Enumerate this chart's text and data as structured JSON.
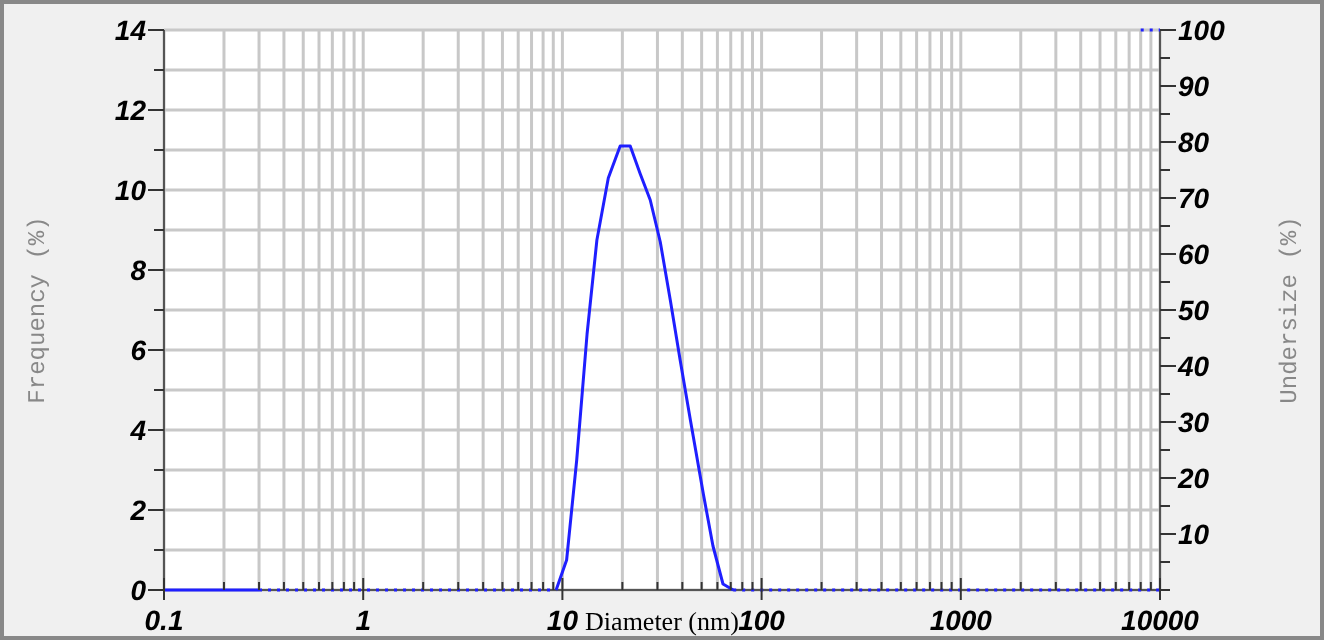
{
  "chart_data": {
    "type": "line",
    "xlabel": "Diameter (nm)",
    "ylabel": "Frequency (%)",
    "y2label": "Undersize (%)",
    "log": "x",
    "grid": true,
    "marker": "none",
    "xlim": [
      0.1,
      10000
    ],
    "xticks": [
      0.1,
      {
        "value": 0.2,
        "label": null
      },
      {
        "value": 0.3,
        "label": null
      },
      {
        "value": 0.4,
        "label": null
      },
      {
        "value": 0.5,
        "label": null
      },
      {
        "value": 0.6,
        "label": null
      },
      {
        "value": 0.7,
        "label": null
      },
      {
        "value": 0.8,
        "label": null
      },
      {
        "value": 0.9,
        "label": null
      },
      1,
      {
        "value": 2,
        "label": null
      },
      {
        "value": 3,
        "label": null
      },
      {
        "value": 4,
        "label": null
      },
      {
        "value": 5,
        "label": null
      },
      {
        "value": 6,
        "label": null
      },
      {
        "value": 7,
        "label": null
      },
      {
        "value": 8,
        "label": null
      },
      {
        "value": 9,
        "label": null
      },
      10,
      {
        "value": 20,
        "label": null
      },
      {
        "value": 30,
        "label": null
      },
      {
        "value": 40,
        "label": null
      },
      {
        "value": 50,
        "label": null
      },
      {
        "value": 60,
        "label": null
      },
      {
        "value": 70,
        "label": null
      },
      {
        "value": 80,
        "label": null
      },
      {
        "value": 90,
        "label": null
      },
      100,
      {
        "value": 200,
        "label": null
      },
      {
        "value": 300,
        "label": null
      },
      {
        "value": 400,
        "label": null
      },
      {
        "value": 500,
        "label": null
      },
      {
        "value": 600,
        "label": null
      },
      {
        "value": 700,
        "label": null
      },
      {
        "value": 800,
        "label": null
      },
      {
        "value": 900,
        "label": null
      },
      1000,
      {
        "value": 2000,
        "label": null
      },
      {
        "value": 3000,
        "label": null
      },
      {
        "value": 4000,
        "label": null
      },
      {
        "value": 5000,
        "label": null
      },
      {
        "value": 6000,
        "label": null
      },
      {
        "value": 7000,
        "label": null
      },
      {
        "value": 8000,
        "label": null
      },
      {
        "value": 9000,
        "label": null
      },
      10000
    ],
    "ylim": [
      0,
      14
    ],
    "yticks": [
      0,
      {
        "value": 1,
        "label": null
      },
      2,
      {
        "value": 3,
        "label": null
      },
      4,
      {
        "value": 5,
        "label": null
      },
      6,
      {
        "value": 7,
        "label": null
      },
      8,
      {
        "value": 9,
        "label": null
      },
      10,
      {
        "value": 11,
        "label": null
      },
      12,
      {
        "value": 13,
        "label": null
      },
      14
    ],
    "y2lim": [
      0,
      100
    ],
    "y2ticks": [
      {
        "value": 0,
        "label": null
      },
      {
        "value": 5,
        "label": null
      },
      10,
      {
        "value": 15,
        "label": null
      },
      20,
      {
        "value": 25,
        "label": null
      },
      30,
      {
        "value": 35,
        "label": null
      },
      40,
      {
        "value": 45,
        "label": null
      },
      50,
      {
        "value": 55,
        "label": null
      },
      60,
      {
        "value": 65,
        "label": null
      },
      70,
      {
        "value": 75,
        "label": null
      },
      80,
      {
        "value": 85,
        "label": null
      },
      90,
      {
        "value": 95,
        "label": null
      },
      100
    ],
    "series": [
      {
        "color": "#1f1fff",
        "line_style": "solid",
        "x": [
          0.1,
          0.3
        ],
        "values": [
          0,
          0
        ]
      },
      {
        "color": "#1f1fff",
        "line_style": "solid",
        "x": [
          9.3,
          10.5,
          11.8,
          13.3,
          14.9,
          17,
          19.5,
          21.9,
          24.6,
          27.6,
          31,
          34.8,
          39,
          43.9,
          51,
          57,
          64,
          72
        ],
        "values": [
          0,
          0.75,
          3.25,
          6.4,
          8.75,
          10.3,
          11.1,
          11.1,
          10.4,
          9.75,
          8.7,
          7.25,
          5.75,
          4.25,
          2.4,
          1.1,
          0.15,
          0
        ]
      },
      {
        "color": "#1f1fff",
        "line_style": "dotted",
        "x": [
          0.3,
          9.3
        ],
        "values": [
          0,
          0
        ]
      },
      {
        "color": "#1f1fff",
        "line_style": "dotted",
        "x": [
          72,
          10000
        ],
        "values": [
          0,
          0
        ]
      },
      {
        "color": "#1f1fff",
        "line_style": "dotted",
        "axis": "y2",
        "x": [
          8000,
          10000
        ],
        "values": [
          100,
          100
        ]
      }
    ]
  }
}
